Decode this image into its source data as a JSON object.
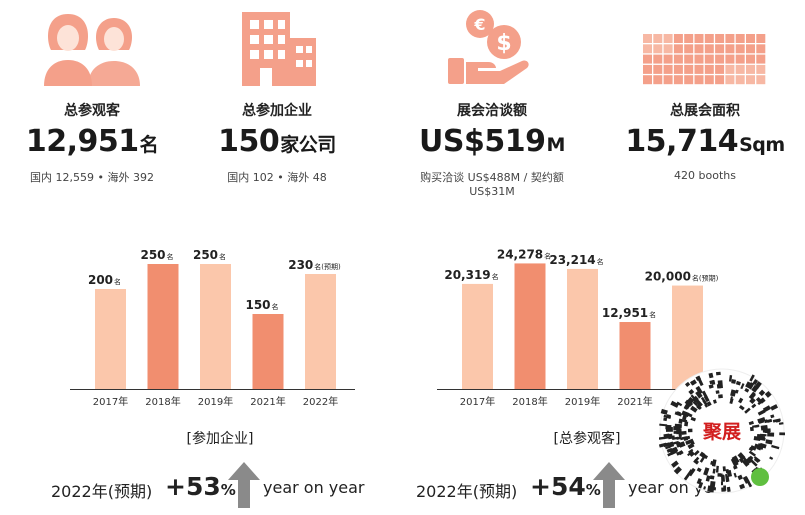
{
  "stats": [
    {
      "icon": "people-icon",
      "label": "总参观客",
      "value": "12,951",
      "unit": "名",
      "sub": "国内 12,559 • 海外 392"
    },
    {
      "icon": "building-icon",
      "label": "总参加企业",
      "value": "150",
      "unit": "家公司",
      "sub": "国内 102 • 海外 48"
    },
    {
      "icon": "money-hand-icon",
      "label": "展会洽谈额",
      "value": "US$519",
      "unit": "M",
      "sub": "购买洽谈 US$488M / 契约额 US$31M"
    },
    {
      "icon": "grid-area-icon",
      "label": "总展会面积",
      "value": "15,714",
      "unit": "Sqm",
      "sub": "420 booths"
    }
  ],
  "colors": {
    "light": "#fbc7ab",
    "dark": "#f18e6f",
    "icon": "#f4a08a",
    "arrow": "#8a8a8a"
  },
  "chart_data": [
    {
      "type": "bar",
      "title": "[参加企业]",
      "categories": [
        "2017年",
        "2018年",
        "2019年",
        "2021年",
        "2022年"
      ],
      "values": [
        200,
        250,
        250,
        150,
        230
      ],
      "value_labels": [
        "200",
        "250",
        "250",
        "150",
        "230"
      ],
      "unit_labels": [
        "名",
        "名",
        "名",
        "名",
        "名(预期)"
      ],
      "highlight": [
        false,
        true,
        false,
        true,
        false
      ],
      "ylim": [
        0,
        300
      ],
      "grid": false,
      "legend": "none"
    },
    {
      "type": "bar",
      "title": "[总参观客]",
      "categories": [
        "2017年",
        "2018年",
        "2019年",
        "2021年",
        "2022年"
      ],
      "values": [
        20319,
        24278,
        23214,
        12951,
        20000
      ],
      "value_labels": [
        "20,319",
        "24,278",
        "23,214",
        "12,951",
        "20,000"
      ],
      "unit_labels": [
        "名",
        "名",
        "名",
        "名",
        "名(预期)"
      ],
      "highlight": [
        false,
        true,
        false,
        true,
        false
      ],
      "ylim": [
        0,
        29000
      ],
      "grid": false,
      "legend": "none"
    }
  ],
  "yoy": [
    {
      "year": "2022年(预期)",
      "percent": "+53",
      "sign": "%",
      "text": "year on year"
    },
    {
      "year": "2022年(预期)",
      "percent": "+54",
      "sign": "%",
      "text": "year on year"
    }
  ],
  "qr": {
    "logo_text": "聚展"
  }
}
